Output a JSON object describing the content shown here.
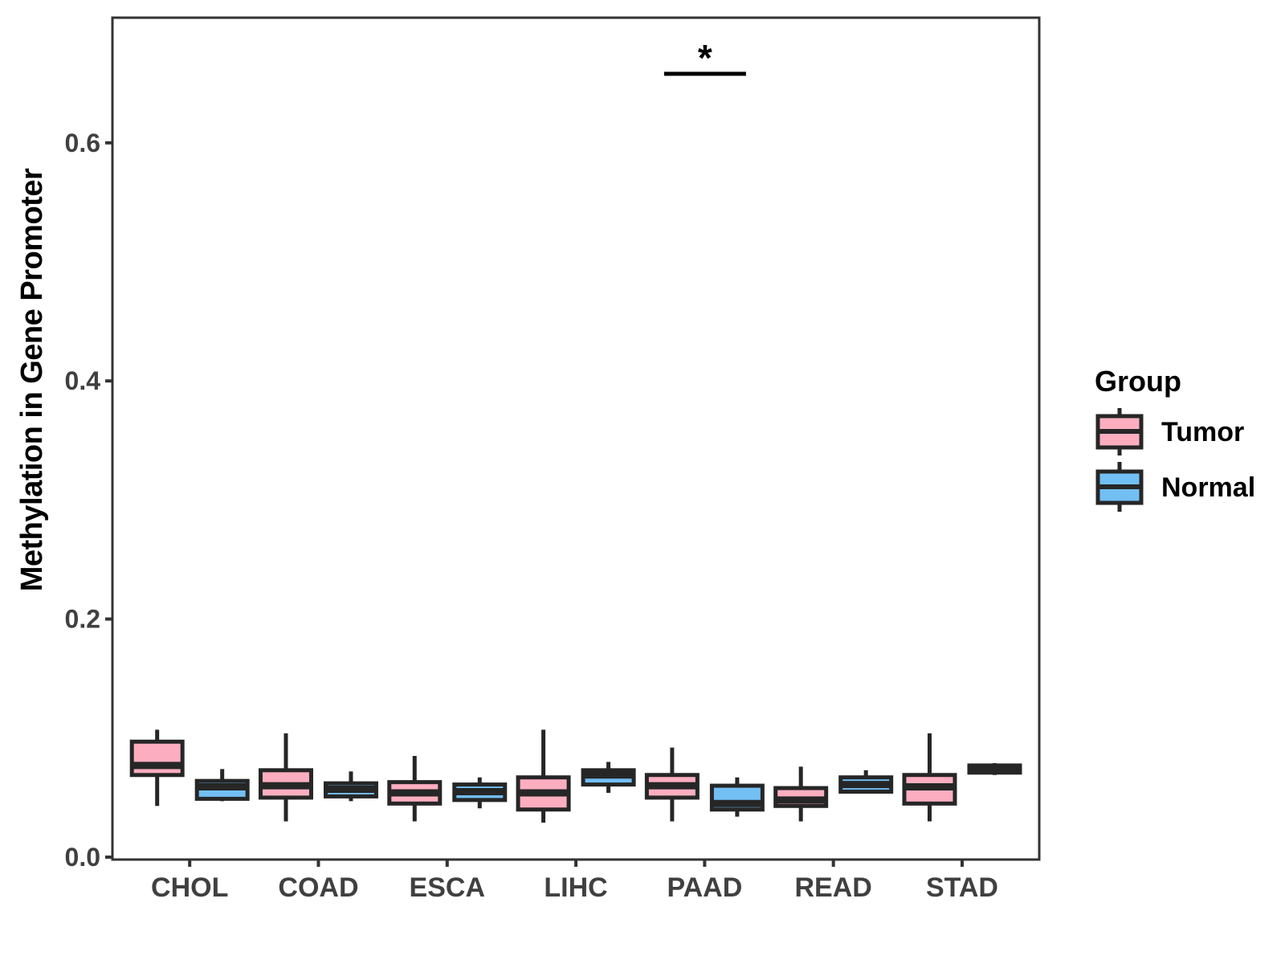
{
  "colors": {
    "tumor_fill": "#FCAEC0",
    "normal_fill": "#72BFF4",
    "box_stroke": "#262626",
    "panel_stroke": "#333333",
    "tick_text": "#404040",
    "title_text": "#000000",
    "background": "#FFFFFF"
  },
  "chart_data": {
    "type": "grouped_boxplot",
    "title": "",
    "xlabel": "",
    "ylabel": "Methylation in Gene Promoter",
    "grid": false,
    "panel_border": true,
    "categories": [
      "CHOL",
      "COAD",
      "ESCA",
      "LIHC",
      "PAAD",
      "READ",
      "STAD"
    ],
    "y_ticks": {
      "values": [
        0.0,
        0.2,
        0.4,
        0.6
      ],
      "labels": [
        "0.0",
        "0.2",
        "0.4",
        "0.6"
      ]
    },
    "ylim": [
      0.0,
      0.705
    ],
    "series": [
      {
        "name": "Tumor",
        "fill": "#FCAEC0",
        "boxes": [
          {
            "category": "CHOL",
            "low": 0.043,
            "q1": 0.069,
            "median": 0.077,
            "q3": 0.097,
            "high": 0.107
          },
          {
            "category": "COAD",
            "low": 0.03,
            "q1": 0.05,
            "median": 0.06,
            "q3": 0.073,
            "high": 0.104
          },
          {
            "category": "ESCA",
            "low": 0.03,
            "q1": 0.045,
            "median": 0.054,
            "q3": 0.063,
            "high": 0.085
          },
          {
            "category": "LIHC",
            "low": 0.029,
            "q1": 0.04,
            "median": 0.054,
            "q3": 0.067,
            "high": 0.107
          },
          {
            "category": "PAAD",
            "low": 0.03,
            "q1": 0.05,
            "median": 0.06,
            "q3": 0.069,
            "high": 0.092
          },
          {
            "category": "READ",
            "low": 0.03,
            "q1": 0.043,
            "median": 0.048,
            "q3": 0.058,
            "high": 0.076
          },
          {
            "category": "STAD",
            "low": 0.03,
            "q1": 0.045,
            "median": 0.059,
            "q3": 0.069,
            "high": 0.104
          }
        ]
      },
      {
        "name": "Normal",
        "fill": "#72BFF4",
        "boxes": [
          {
            "category": "CHOL",
            "low": 0.047,
            "q1": 0.049,
            "median": 0.059,
            "q3": 0.064,
            "high": 0.074
          },
          {
            "category": "COAD",
            "low": 0.047,
            "q1": 0.051,
            "median": 0.057,
            "q3": 0.062,
            "high": 0.072
          },
          {
            "category": "ESCA",
            "low": 0.041,
            "q1": 0.048,
            "median": 0.055,
            "q3": 0.061,
            "high": 0.067
          },
          {
            "category": "LIHC",
            "low": 0.054,
            "q1": 0.061,
            "median": 0.069,
            "q3": 0.073,
            "high": 0.08
          },
          {
            "category": "PAAD",
            "low": 0.034,
            "q1": 0.04,
            "median": 0.045,
            "q3": 0.06,
            "high": 0.067
          },
          {
            "category": "READ",
            "low": 0.054,
            "q1": 0.055,
            "median": 0.061,
            "q3": 0.067,
            "high": 0.073
          },
          {
            "category": "STAD",
            "low": 0.069,
            "q1": 0.071,
            "median": 0.074,
            "q3": 0.077,
            "high": 0.079
          }
        ]
      }
    ],
    "annotations": [
      {
        "type": "significance",
        "category": "PAAD",
        "between": [
          "Tumor",
          "Normal"
        ],
        "label": "*",
        "line_y": 0.658
      }
    ],
    "legend": {
      "title": "Group",
      "position": "right",
      "entries": [
        {
          "label": "Tumor",
          "fill": "#FCAEC0"
        },
        {
          "label": "Normal",
          "fill": "#72BFF4"
        }
      ]
    }
  }
}
